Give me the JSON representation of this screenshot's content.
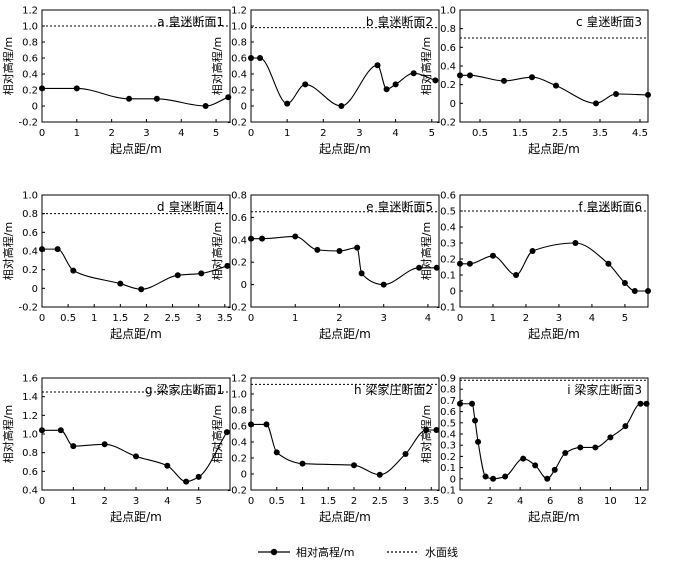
{
  "legend": {
    "series_label": "相对高程/m",
    "water_label": "水面线"
  },
  "chart_data": [
    {
      "type": "line",
      "title": "a 皇迷断面1",
      "xlabel": "起点距/m",
      "ylabel": "相对高程/m",
      "xlim": [
        0,
        5.4
      ],
      "ylim": [
        -0.2,
        1.2
      ],
      "xticks": [
        0,
        1,
        2,
        3,
        4,
        5
      ],
      "yticks": [
        -0.2,
        0,
        0.2,
        0.4,
        0.6,
        0.8,
        1.0,
        1.2
      ],
      "ytick_labels": [
        "-0.2",
        "0",
        "0.2",
        "0.4",
        "0.6",
        "0.8",
        "1.0",
        "1.2"
      ],
      "water_level": 1.0,
      "series": [
        {
          "x": [
            0,
            1,
            2.5,
            3.3,
            4.7,
            5.35
          ],
          "y": [
            0.22,
            0.22,
            0.09,
            0.09,
            0.0,
            0.11
          ]
        }
      ]
    },
    {
      "type": "line",
      "title": "b 皇迷断面2",
      "xlabel": "起点距/m",
      "ylabel": "相对高程/m",
      "xlim": [
        0,
        5.2
      ],
      "ylim": [
        -0.2,
        1.2
      ],
      "xticks": [
        0,
        1,
        2,
        3,
        4,
        5
      ],
      "yticks": [
        -0.2,
        0,
        0.2,
        0.4,
        0.6,
        0.8,
        1.0,
        1.2
      ],
      "ytick_labels": [
        "-0.2",
        "0",
        "0.2",
        "0.4",
        "0.6",
        "0.8",
        "1.0",
        "1.2"
      ],
      "water_level": 0.98,
      "series": [
        {
          "x": [
            0,
            0.25,
            1,
            1.5,
            2.5,
            3.5,
            3.75,
            4.0,
            4.5,
            5.1
          ],
          "y": [
            0.6,
            0.6,
            0.03,
            0.27,
            0.0,
            0.51,
            0.21,
            0.27,
            0.41,
            0.32
          ]
        }
      ]
    },
    {
      "type": "line",
      "title": "c 皇迷断面3",
      "xlabel": "起点距/m",
      "ylabel": "相对高程/m",
      "xlim": [
        0,
        4.7
      ],
      "ylim": [
        -0.2,
        1.0
      ],
      "xticks": [
        0.5,
        1.5,
        2.5,
        3.5,
        4.5
      ],
      "yticks": [
        -0.2,
        0,
        0.2,
        0.4,
        0.6,
        0.8,
        1.0
      ],
      "ytick_labels": [
        "-0.2",
        "0",
        "0.2",
        "0.4",
        "0.6",
        "0.8",
        "1.0"
      ],
      "water_level": 0.7,
      "series": [
        {
          "x": [
            0,
            0.25,
            1.1,
            1.8,
            2.4,
            3.4,
            3.9,
            4.7
          ],
          "y": [
            0.3,
            0.3,
            0.24,
            0.28,
            0.19,
            0.0,
            0.1,
            0.09
          ]
        }
      ]
    },
    {
      "type": "line",
      "title": "d 皇迷断面4",
      "xlabel": "起点距/m",
      "ylabel": "相对高程/m",
      "xlim": [
        0,
        3.6
      ],
      "ylim": [
        -0.2,
        1.0
      ],
      "xticks": [
        0,
        0.5,
        1,
        1.5,
        2,
        2.5,
        3,
        3.5
      ],
      "yticks": [
        -0.2,
        0,
        0.2,
        0.4,
        0.6,
        0.8,
        1.0
      ],
      "ytick_labels": [
        "-0.2",
        "0",
        "0.2",
        "0.4",
        "0.6",
        "0.8",
        "1.0"
      ],
      "water_level": 0.8,
      "series": [
        {
          "x": [
            0,
            0.3,
            0.6,
            1.5,
            1.9,
            2.6,
            3.05,
            3.55
          ],
          "y": [
            0.42,
            0.42,
            0.19,
            0.05,
            -0.01,
            0.14,
            0.16,
            0.24
          ]
        }
      ]
    },
    {
      "type": "line",
      "title": "e 皇迷断面5",
      "xlabel": "起点距/m",
      "ylabel": "相对高程/m",
      "xlim": [
        0,
        4.25
      ],
      "ylim": [
        -0.2,
        0.8
      ],
      "xticks": [
        0,
        1,
        2,
        3,
        4
      ],
      "yticks": [
        -0.2,
        0,
        0.2,
        0.4,
        0.6,
        0.8
      ],
      "ytick_labels": [
        "-0.2",
        "0",
        "0.2",
        "0.4",
        "0.6",
        "0.8"
      ],
      "water_level": 0.65,
      "series": [
        {
          "x": [
            0,
            0.25,
            1.0,
            1.5,
            2.0,
            2.4,
            2.5,
            3.0,
            3.8,
            4.2
          ],
          "y": [
            0.41,
            0.41,
            0.43,
            0.31,
            0.3,
            0.33,
            0.1,
            0.0,
            0.15,
            0.15
          ]
        }
      ]
    },
    {
      "type": "line",
      "title": "f 皇迷断面6",
      "xlabel": "起点距/m",
      "ylabel": "相对高程/m",
      "xlim": [
        0,
        5.7
      ],
      "ylim": [
        -0.1,
        0.6
      ],
      "xticks": [
        0,
        1,
        2,
        3,
        4,
        5
      ],
      "yticks": [
        -0.1,
        0,
        0.1,
        0.2,
        0.3,
        0.4,
        0.5,
        0.6
      ],
      "ytick_labels": [
        "-0.1",
        "0",
        "0.1",
        "0.2",
        "0.3",
        "0.4",
        "0.5",
        "0.6"
      ],
      "water_level": 0.5,
      "series": [
        {
          "x": [
            0,
            0.3,
            1.0,
            1.7,
            2.2,
            3.5,
            4.5,
            5.0,
            5.3,
            5.7
          ],
          "y": [
            0.17,
            0.17,
            0.22,
            0.1,
            0.25,
            0.3,
            0.17,
            0.05,
            0.0,
            0.0
          ]
        }
      ]
    },
    {
      "type": "line",
      "title": "g 梁家庄断面1",
      "xlabel": "起点距/m",
      "ylabel": "相对高程/m",
      "xlim": [
        0,
        6
      ],
      "ylim": [
        0.4,
        1.6
      ],
      "xticks": [
        0,
        1,
        2,
        3,
        4,
        5
      ],
      "yticks": [
        0.4,
        0.6,
        0.8,
        1.0,
        1.2,
        1.4,
        1.6
      ],
      "ytick_labels": [
        "0.4",
        "0.6",
        "0.8",
        "1.0",
        "1.2",
        "1.4",
        "1.6"
      ],
      "water_level": 1.45,
      "series": [
        {
          "x": [
            0,
            0.6,
            1.0,
            2.0,
            3.0,
            4.0,
            4.6,
            5.0,
            5.9
          ],
          "y": [
            1.04,
            1.04,
            0.87,
            0.89,
            0.76,
            0.66,
            0.49,
            0.54,
            1.02
          ]
        }
      ]
    },
    {
      "type": "line",
      "title": "h 梁家庄断面2",
      "xlabel": "起点距/m",
      "ylabel": "相对高程/m",
      "xlim": [
        0,
        3.65
      ],
      "ylim": [
        -0.2,
        1.2
      ],
      "xticks": [
        0,
        0.5,
        1,
        1.5,
        2,
        2.5,
        3,
        3.5
      ],
      "yticks": [
        -0.2,
        0,
        0.2,
        0.4,
        0.6,
        0.8,
        1.0,
        1.2
      ],
      "ytick_labels": [
        "-0.2",
        "0",
        "0.2",
        "0.4",
        "0.6",
        "0.8",
        "1.0",
        "1.2"
      ],
      "water_level": 1.12,
      "series": [
        {
          "x": [
            0,
            0.3,
            0.5,
            1.0,
            2.0,
            2.5,
            3.0,
            3.4,
            3.6
          ],
          "y": [
            0.62,
            0.62,
            0.27,
            0.13,
            0.11,
            -0.01,
            0.25,
            0.55,
            0.55
          ]
        }
      ]
    },
    {
      "type": "line",
      "title": "i 梁家庄断面3",
      "xlabel": "起点距/m",
      "ylabel": "相对高程/m",
      "xlim": [
        0,
        12.5
      ],
      "ylim": [
        -0.1,
        0.9
      ],
      "xticks": [
        0,
        2,
        4,
        6,
        8,
        10,
        12
      ],
      "yticks": [
        -0.1,
        0,
        0.1,
        0.2,
        0.3,
        0.4,
        0.5,
        0.6,
        0.7,
        0.8,
        0.9
      ],
      "ytick_labels": [
        "-0.1",
        "0",
        "0.1",
        "0.2",
        "0.3",
        "0.4",
        "0.5",
        "0.6",
        "0.7",
        "0.8",
        "0.9"
      ],
      "water_level": 0.88,
      "series": [
        {
          "x": [
            0,
            0.8,
            1.0,
            1.2,
            1.7,
            2.2,
            3.0,
            4.2,
            5.0,
            5.8,
            6.3,
            7.0,
            8.0,
            9.0,
            10.0,
            11.0,
            12.0,
            12.4
          ],
          "y": [
            0.67,
            0.67,
            0.52,
            0.33,
            0.02,
            0.0,
            0.02,
            0.18,
            0.12,
            0.0,
            0.08,
            0.23,
            0.28,
            0.28,
            0.37,
            0.47,
            0.67,
            0.67
          ]
        }
      ]
    }
  ]
}
